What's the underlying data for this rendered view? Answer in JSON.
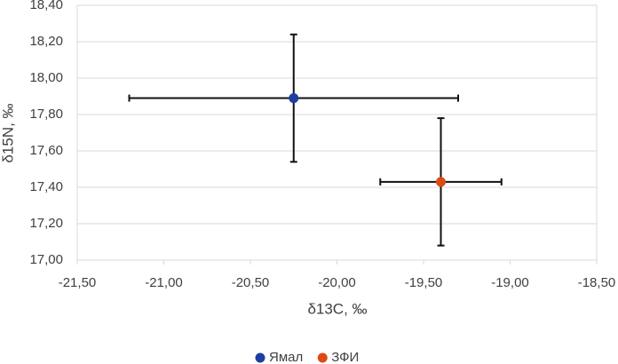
{
  "chart_data": {
    "type": "scatter",
    "x_label": "δ13C, ‰",
    "y_label": "δ15N, ‰",
    "xlim": [
      -21.5,
      -18.5
    ],
    "xticks": [
      {
        "value": -21.5,
        "label": "-21,50"
      },
      {
        "value": -21,
        "label": "-21,00"
      },
      {
        "value": -20.5,
        "label": "-20,50"
      },
      {
        "value": -20,
        "label": "-20,00"
      },
      {
        "value": -19.5,
        "label": "-19,50"
      },
      {
        "value": -19,
        "label": "-19,00"
      },
      {
        "value": -18.5,
        "label": "-18,50"
      }
    ],
    "ylim": [
      17.0,
      18.4
    ],
    "yticks": [
      {
        "value": 17.0,
        "label": "17,00"
      },
      {
        "value": 17.2,
        "label": "17,20"
      },
      {
        "value": 17.4,
        "label": "17,40"
      },
      {
        "value": 17.6,
        "label": "17,60"
      },
      {
        "value": 17.8,
        "label": "17,80"
      },
      {
        "value": 18.0,
        "label": "18,00"
      },
      {
        "value": 18.2,
        "label": "18,20"
      },
      {
        "value": 18.4,
        "label": "18,40"
      }
    ],
    "grid": true,
    "legend": "bottom",
    "series": [
      {
        "name": "Ямал",
        "color": "#1f3f9f",
        "x": [
          -20.25
        ],
        "values": [
          17.89
        ],
        "xerr": [
          0.95
        ],
        "yerr": [
          0.35
        ]
      },
      {
        "name": "ЗФИ",
        "color": "#dd4a12",
        "x": [
          -19.4
        ],
        "values": [
          17.43
        ],
        "xerr": [
          0.35
        ],
        "yerr": [
          0.35
        ]
      }
    ]
  }
}
